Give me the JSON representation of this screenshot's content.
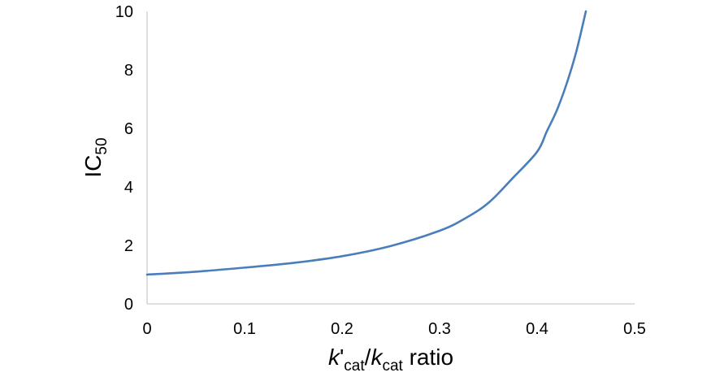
{
  "chart_data": {
    "type": "line",
    "title": "",
    "xlabel": {
      "parts": [
        {
          "text": "k",
          "style": "italic"
        },
        {
          "text": "'",
          "style": "normal"
        },
        {
          "text": "cat",
          "style": "sub"
        },
        {
          "text": "/",
          "style": "normal"
        },
        {
          "text": "k",
          "style": "italic"
        },
        {
          "text": "cat",
          "style": "sub"
        },
        {
          "text": " ratio",
          "style": "normal"
        }
      ]
    },
    "ylabel": {
      "parts": [
        {
          "text": "IC",
          "style": "normal"
        },
        {
          "text": "50",
          "style": "sub"
        }
      ]
    },
    "xlim": [
      0,
      0.5
    ],
    "ylim": [
      0,
      10
    ],
    "xticks": [
      0,
      0.1,
      0.2,
      0.3,
      0.4,
      0.5
    ],
    "xtick_labels": [
      "0",
      "0.1",
      "0.2",
      "0.3",
      "0.4",
      "0.5"
    ],
    "yticks": [
      0,
      2,
      4,
      6,
      8,
      10
    ],
    "ytick_labels": [
      "0",
      "2",
      "4",
      "6",
      "8",
      "10"
    ],
    "grid": false,
    "legend": "none",
    "series": [
      {
        "color": "#4a7ebb",
        "x": [
          0,
          0.05,
          0.1,
          0.15,
          0.2,
          0.25,
          0.3,
          0.325,
          0.35,
          0.375,
          0.4,
          0.41,
          0.42,
          0.43,
          0.44,
          0.45
        ],
        "y": [
          1.0,
          1.1,
          1.24,
          1.4,
          1.63,
          1.98,
          2.5,
          2.9,
          3.45,
          4.3,
          5.2,
          5.9,
          6.6,
          7.5,
          8.6,
          10.0
        ]
      }
    ]
  }
}
